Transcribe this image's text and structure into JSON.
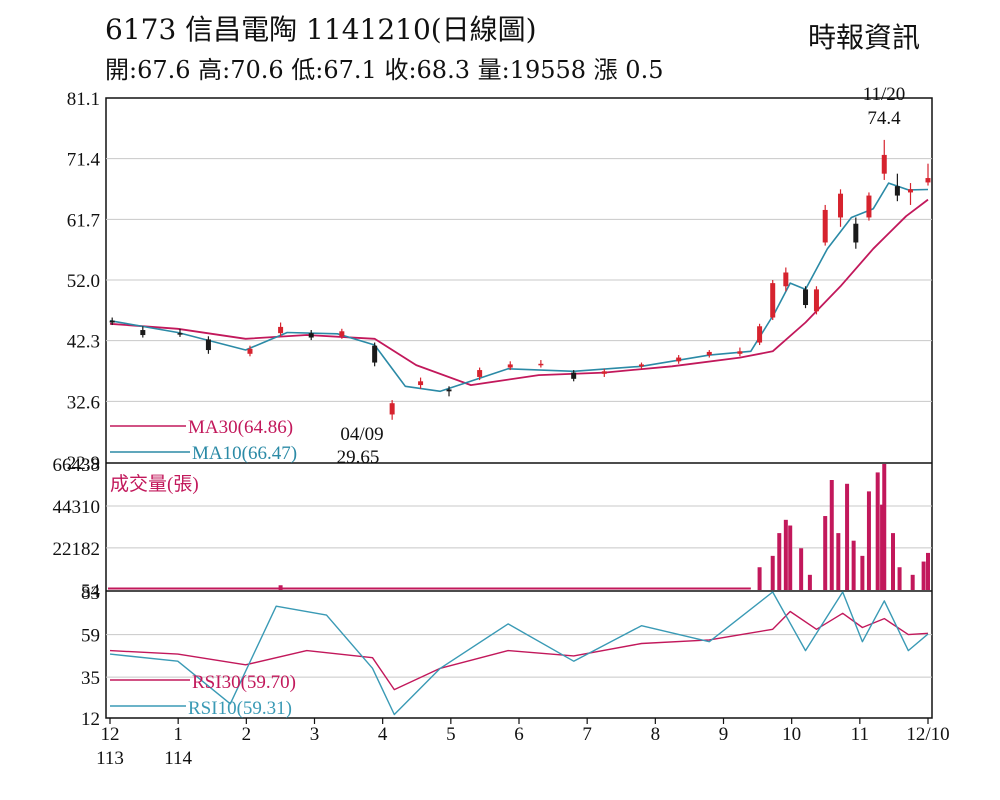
{
  "header": {
    "title": "6173  信昌電陶 1141210(日線圖)",
    "source": "時報資訊",
    "quote": "開:67.6 高:70.6 低:67.1 收:68.3 量:19558 漲 0.5"
  },
  "colors": {
    "up": "#d6232e",
    "down": "#1a1a1a",
    "ma30": "#c2185b",
    "ma10": "#2b8aa6",
    "volume": "#c2185b",
    "rsi30": "#c2185b",
    "rsi10": "#3a9ab5",
    "grid": "#c8c8c8"
  },
  "chart_data": [
    {
      "type": "candlestick",
      "panel": "price",
      "y_ticks": [
        "81.1",
        "71.4",
        "61.7",
        "52.0",
        "42.3",
        "32.6",
        "22.9"
      ],
      "ylim": [
        22.9,
        81.1
      ],
      "x_ticks": [
        {
          "label": "12",
          "sub": "113"
        },
        {
          "label": "1",
          "sub": "114"
        },
        {
          "label": "2"
        },
        {
          "label": "3"
        },
        {
          "label": "4"
        },
        {
          "label": "5"
        },
        {
          "label": "6"
        },
        {
          "label": "7"
        },
        {
          "label": "8"
        },
        {
          "label": "9"
        },
        {
          "label": "10"
        },
        {
          "label": "11"
        },
        {
          "label": "12/10"
        }
      ],
      "x_range": [
        "2024-12-01",
        "2025-12-10"
      ],
      "ohlc_sampled": [
        {
          "date": "2024-12-02",
          "open": 45.5,
          "high": 46.0,
          "low": 44.8,
          "close": 45.2
        },
        {
          "date": "2024-12-16",
          "open": 44.0,
          "high": 44.6,
          "low": 42.8,
          "close": 43.2
        },
        {
          "date": "2025-01-02",
          "open": 43.5,
          "high": 44.2,
          "low": 42.9,
          "close": 43.4
        },
        {
          "date": "2025-01-15",
          "open": 42.5,
          "high": 43.0,
          "low": 40.2,
          "close": 40.8
        },
        {
          "date": "2025-02-03",
          "open": 40.2,
          "high": 41.5,
          "low": 39.8,
          "close": 41.0
        },
        {
          "date": "2025-02-17",
          "open": 43.5,
          "high": 45.2,
          "low": 43.0,
          "close": 44.5
        },
        {
          "date": "2025-03-03",
          "open": 43.5,
          "high": 44.0,
          "low": 42.4,
          "close": 42.8
        },
        {
          "date": "2025-03-17",
          "open": 43.0,
          "high": 44.2,
          "low": 42.6,
          "close": 43.8
        },
        {
          "date": "2025-04-01",
          "open": 41.5,
          "high": 42.0,
          "low": 38.2,
          "close": 38.8
        },
        {
          "date": "2025-04-09",
          "open": 30.5,
          "high": 32.8,
          "low": 29.65,
          "close": 32.3
        },
        {
          "date": "2025-04-22",
          "open": 35.2,
          "high": 36.4,
          "low": 34.6,
          "close": 35.8
        },
        {
          "date": "2025-05-05",
          "open": 34.5,
          "high": 35.0,
          "low": 33.4,
          "close": 34.2
        },
        {
          "date": "2025-05-19",
          "open": 36.5,
          "high": 38.0,
          "low": 36.0,
          "close": 37.6
        },
        {
          "date": "2025-06-02",
          "open": 38.0,
          "high": 39.0,
          "low": 37.6,
          "close": 38.5
        },
        {
          "date": "2025-06-16",
          "open": 38.5,
          "high": 39.2,
          "low": 38.0,
          "close": 38.6
        },
        {
          "date": "2025-07-01",
          "open": 37.2,
          "high": 37.6,
          "low": 35.8,
          "close": 36.2
        },
        {
          "date": "2025-07-15",
          "open": 37.0,
          "high": 37.8,
          "low": 36.5,
          "close": 37.4
        },
        {
          "date": "2025-08-01",
          "open": 38.2,
          "high": 38.8,
          "low": 37.8,
          "close": 38.5
        },
        {
          "date": "2025-08-18",
          "open": 39.0,
          "high": 40.0,
          "low": 38.6,
          "close": 39.6
        },
        {
          "date": "2025-09-01",
          "open": 40.0,
          "high": 40.8,
          "low": 39.6,
          "close": 40.5
        },
        {
          "date": "2025-09-15",
          "open": 40.2,
          "high": 41.2,
          "low": 39.8,
          "close": 40.6
        },
        {
          "date": "2025-09-24",
          "open": 42.0,
          "high": 45.0,
          "low": 41.6,
          "close": 44.6
        },
        {
          "date": "2025-09-30",
          "open": 46.0,
          "high": 52.0,
          "low": 45.6,
          "close": 51.5
        },
        {
          "date": "2025-10-06",
          "open": 51.0,
          "high": 54.0,
          "low": 50.2,
          "close": 53.2
        },
        {
          "date": "2025-10-15",
          "open": 50.5,
          "high": 51.0,
          "low": 47.5,
          "close": 48.0
        },
        {
          "date": "2025-10-20",
          "open": 47.0,
          "high": 51.0,
          "low": 46.5,
          "close": 50.5
        },
        {
          "date": "2025-10-24",
          "open": 58.0,
          "high": 64.0,
          "low": 57.5,
          "close": 63.2
        },
        {
          "date": "2025-10-31",
          "open": 62.0,
          "high": 66.5,
          "low": 60.5,
          "close": 65.8
        },
        {
          "date": "2025-11-07",
          "open": 61.0,
          "high": 62.0,
          "low": 57.0,
          "close": 58.0
        },
        {
          "date": "2025-11-13",
          "open": 62.0,
          "high": 66.0,
          "low": 61.5,
          "close": 65.5
        },
        {
          "date": "2025-11-20",
          "open": 69.0,
          "high": 74.4,
          "low": 68.0,
          "close": 72.0
        },
        {
          "date": "2025-11-26",
          "open": 67.0,
          "high": 69.0,
          "low": 64.6,
          "close": 65.5
        },
        {
          "date": "2025-12-02",
          "open": 66.0,
          "high": 67.5,
          "low": 64.0,
          "close": 66.5
        },
        {
          "date": "2025-12-10",
          "open": 67.6,
          "high": 70.6,
          "low": 67.1,
          "close": 68.3
        }
      ],
      "ma10": [
        {
          "date": "2024-12-01",
          "value": 45.5
        },
        {
          "date": "2025-01-01",
          "value": 43.6
        },
        {
          "date": "2025-02-01",
          "value": 40.8
        },
        {
          "date": "2025-02-20",
          "value": 43.6
        },
        {
          "date": "2025-03-15",
          "value": 43.4
        },
        {
          "date": "2025-04-01",
          "value": 41.6
        },
        {
          "date": "2025-04-15",
          "value": 35.0
        },
        {
          "date": "2025-05-01",
          "value": 34.2
        },
        {
          "date": "2025-06-01",
          "value": 37.8
        },
        {
          "date": "2025-07-01",
          "value": 37.4
        },
        {
          "date": "2025-08-01",
          "value": 38.2
        },
        {
          "date": "2025-09-01",
          "value": 40.0
        },
        {
          "date": "2025-09-20",
          "value": 40.6
        },
        {
          "date": "2025-10-01",
          "value": 46.8
        },
        {
          "date": "2025-10-08",
          "value": 51.5
        },
        {
          "date": "2025-10-15",
          "value": 50.5
        },
        {
          "date": "2025-10-25",
          "value": 57.0
        },
        {
          "date": "2025-11-05",
          "value": 62.0
        },
        {
          "date": "2025-11-15",
          "value": 63.4
        },
        {
          "date": "2025-11-22",
          "value": 67.5
        },
        {
          "date": "2025-12-01",
          "value": 66.4
        },
        {
          "date": "2025-12-10",
          "value": 66.47
        }
      ],
      "ma30": [
        {
          "date": "2024-12-01",
          "value": 45.0
        },
        {
          "date": "2025-01-01",
          "value": 44.2
        },
        {
          "date": "2025-02-01",
          "value": 42.6
        },
        {
          "date": "2025-03-01",
          "value": 43.2
        },
        {
          "date": "2025-04-01",
          "value": 42.6
        },
        {
          "date": "2025-04-20",
          "value": 38.4
        },
        {
          "date": "2025-05-15",
          "value": 35.2
        },
        {
          "date": "2025-06-15",
          "value": 36.8
        },
        {
          "date": "2025-07-15",
          "value": 37.2
        },
        {
          "date": "2025-08-15",
          "value": 38.2
        },
        {
          "date": "2025-09-15",
          "value": 39.6
        },
        {
          "date": "2025-09-30",
          "value": 40.6
        },
        {
          "date": "2025-10-15",
          "value": 45.2
        },
        {
          "date": "2025-10-31",
          "value": 51.0
        },
        {
          "date": "2025-11-15",
          "value": 57.0
        },
        {
          "date": "2025-11-30",
          "value": 62.2
        },
        {
          "date": "2025-12-10",
          "value": 64.86
        }
      ],
      "legend": [
        {
          "name": "MA30(64.86)",
          "color": "#c2185b"
        },
        {
          "name": "MA10(66.47)",
          "color": "#2b8aa6"
        }
      ],
      "annotations": [
        {
          "date": "2025-11-20",
          "lines": [
            "11/20",
            "74.4"
          ],
          "kind": "high"
        },
        {
          "date": "2025-04-09",
          "lines": [
            "04/09",
            "29.65"
          ],
          "kind": "low"
        }
      ]
    },
    {
      "type": "bar",
      "panel": "volume",
      "title": "成交量(張)",
      "y_ticks": [
        "66438",
        "44310",
        "22182",
        "54"
      ],
      "ylim": [
        0,
        66438
      ],
      "baseline_volume_before_2025-09-24": 800,
      "bars_sampled": [
        {
          "date": "2025-02-17",
          "value": 2500
        },
        {
          "date": "2025-09-24",
          "value": 12000
        },
        {
          "date": "2025-09-30",
          "value": 18000
        },
        {
          "date": "2025-10-03",
          "value": 30000
        },
        {
          "date": "2025-10-06",
          "value": 37000
        },
        {
          "date": "2025-10-08",
          "value": 34000
        },
        {
          "date": "2025-10-13",
          "value": 22000
        },
        {
          "date": "2025-10-17",
          "value": 8000
        },
        {
          "date": "2025-10-24",
          "value": 39000
        },
        {
          "date": "2025-10-27",
          "value": 58000
        },
        {
          "date": "2025-10-30",
          "value": 30000
        },
        {
          "date": "2025-11-03",
          "value": 56000
        },
        {
          "date": "2025-11-06",
          "value": 26000
        },
        {
          "date": "2025-11-10",
          "value": 18000
        },
        {
          "date": "2025-11-13",
          "value": 52000
        },
        {
          "date": "2025-11-17",
          "value": 62000
        },
        {
          "date": "2025-11-19",
          "value": 45000
        },
        {
          "date": "2025-11-20",
          "value": 66438
        },
        {
          "date": "2025-11-24",
          "value": 30000
        },
        {
          "date": "2025-11-27",
          "value": 12000
        },
        {
          "date": "2025-12-03",
          "value": 8000
        },
        {
          "date": "2025-12-08",
          "value": 15000
        },
        {
          "date": "2025-12-10",
          "value": 19558
        }
      ]
    },
    {
      "type": "line",
      "panel": "rsi",
      "y_ticks": [
        "83",
        "59",
        "35",
        "12"
      ],
      "ylim": [
        12,
        83
      ],
      "series": [
        {
          "name": "RSI30(59.70)",
          "color": "#c2185b",
          "points": [
            {
              "date": "2024-12-01",
              "value": 50
            },
            {
              "date": "2025-01-01",
              "value": 48
            },
            {
              "date": "2025-02-01",
              "value": 42
            },
            {
              "date": "2025-03-01",
              "value": 50
            },
            {
              "date": "2025-03-31",
              "value": 46
            },
            {
              "date": "2025-04-10",
              "value": 28
            },
            {
              "date": "2025-05-01",
              "value": 40
            },
            {
              "date": "2025-06-01",
              "value": 50
            },
            {
              "date": "2025-07-01",
              "value": 47
            },
            {
              "date": "2025-08-01",
              "value": 54
            },
            {
              "date": "2025-09-01",
              "value": 56
            },
            {
              "date": "2025-09-30",
              "value": 62
            },
            {
              "date": "2025-10-08",
              "value": 72
            },
            {
              "date": "2025-10-20",
              "value": 62
            },
            {
              "date": "2025-11-01",
              "value": 71
            },
            {
              "date": "2025-11-10",
              "value": 63
            },
            {
              "date": "2025-11-20",
              "value": 68
            },
            {
              "date": "2025-12-01",
              "value": 59
            },
            {
              "date": "2025-12-10",
              "value": 59.7
            }
          ]
        },
        {
          "name": "RSI10(59.31)",
          "color": "#3a9ab5",
          "points": [
            {
              "date": "2024-12-01",
              "value": 48
            },
            {
              "date": "2025-01-01",
              "value": 44
            },
            {
              "date": "2025-01-25",
              "value": 20
            },
            {
              "date": "2025-02-15",
              "value": 75
            },
            {
              "date": "2025-03-10",
              "value": 70
            },
            {
              "date": "2025-03-31",
              "value": 40
            },
            {
              "date": "2025-04-10",
              "value": 14
            },
            {
              "date": "2025-05-01",
              "value": 40
            },
            {
              "date": "2025-06-01",
              "value": 65
            },
            {
              "date": "2025-07-01",
              "value": 44
            },
            {
              "date": "2025-08-01",
              "value": 64
            },
            {
              "date": "2025-09-01",
              "value": 55
            },
            {
              "date": "2025-09-30",
              "value": 85
            },
            {
              "date": "2025-10-15",
              "value": 50
            },
            {
              "date": "2025-11-01",
              "value": 84
            },
            {
              "date": "2025-11-10",
              "value": 55
            },
            {
              "date": "2025-11-20",
              "value": 78
            },
            {
              "date": "2025-12-01",
              "value": 50
            },
            {
              "date": "2025-12-10",
              "value": 59.31
            }
          ]
        }
      ],
      "legend": [
        {
          "name": "RSI30(59.70)",
          "color": "#c2185b"
        },
        {
          "name": "RSI10(59.31)",
          "color": "#3a9ab5"
        }
      ]
    }
  ]
}
